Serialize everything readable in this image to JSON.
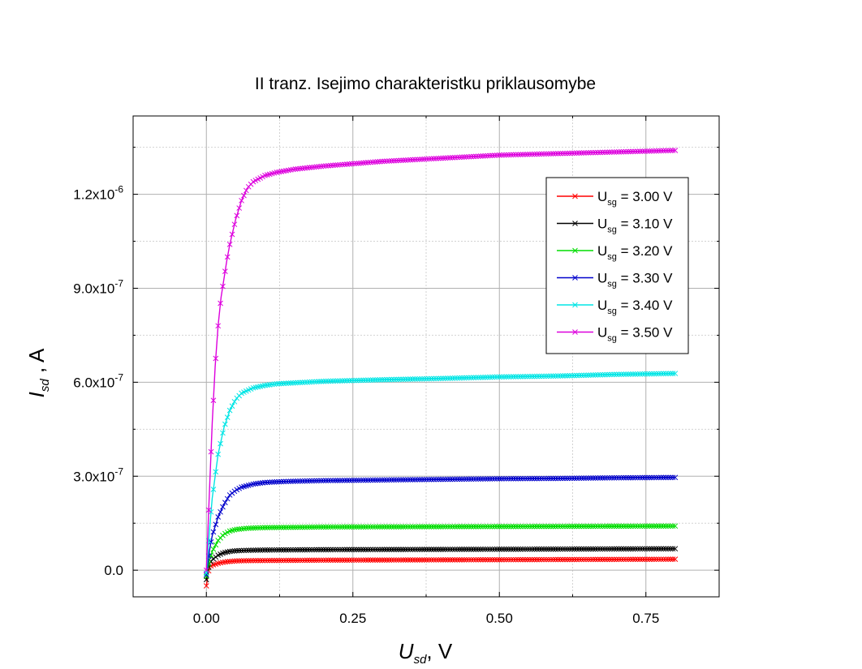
{
  "chart_data": {
    "type": "line",
    "title": "II tranz. Isejimo charakteristku priklausomybe",
    "xlabel": {
      "var": "U",
      "sub": "sd",
      "unit": "V"
    },
    "ylabel": {
      "var": "I",
      "sub": "sd",
      "unit": "A"
    },
    "xlim": [
      -0.125,
      0.875
    ],
    "ylim": [
      -8.5e-08,
      1.45e-06
    ],
    "x_ticks": [
      {
        "value": 0.0,
        "label": "0.00"
      },
      {
        "value": 0.25,
        "label": "0.25"
      },
      {
        "value": 0.5,
        "label": "0.50"
      },
      {
        "value": 0.75,
        "label": "0.75"
      }
    ],
    "y_ticks": [
      {
        "value": 0.0,
        "label": "0.0",
        "exp": ""
      },
      {
        "value": 3e-07,
        "label": "3.0x10",
        "exp": "-7"
      },
      {
        "value": 6e-07,
        "label": "6.0x10",
        "exp": "-7"
      },
      {
        "value": 9e-07,
        "label": "9.0x10",
        "exp": "-7"
      },
      {
        "value": 1.2e-06,
        "label": "1.2x10",
        "exp": "-6"
      }
    ],
    "grid": true,
    "legend_position": "top-right",
    "marker": "x",
    "series": [
      {
        "name": "U_sg = 3.00 V",
        "legend": {
          "var": "U",
          "sub": "sg",
          "text": " = 3.00 V"
        },
        "color": "#ff0000",
        "x": [
          0.0,
          0.005,
          0.01,
          0.02,
          0.03,
          0.04,
          0.05,
          0.07,
          0.1,
          0.15,
          0.2,
          0.3,
          0.4,
          0.5,
          0.6,
          0.7,
          0.8
        ],
        "y": [
          -5e-08,
          1e-08,
          1.6e-08,
          2.2e-08,
          2.6e-08,
          2.8e-08,
          2.95e-08,
          3.05e-08,
          3.1e-08,
          3.15e-08,
          3.2e-08,
          3.25e-08,
          3.3e-08,
          3.35e-08,
          3.4e-08,
          3.45e-08,
          3.5e-08
        ]
      },
      {
        "name": "U_sg = 3.10 V",
        "legend": {
          "var": "U",
          "sub": "sg",
          "text": " = 3.10 V"
        },
        "color": "#000000",
        "x": [
          0.0,
          0.005,
          0.01,
          0.02,
          0.03,
          0.04,
          0.05,
          0.07,
          0.1,
          0.15,
          0.2,
          0.3,
          0.4,
          0.5,
          0.6,
          0.7,
          0.8
        ],
        "y": [
          -3e-08,
          2e-08,
          3.3e-08,
          4.8e-08,
          5.6e-08,
          6e-08,
          6.2e-08,
          6.35e-08,
          6.45e-08,
          6.5e-08,
          6.55e-08,
          6.6e-08,
          6.65e-08,
          6.7e-08,
          6.75e-08,
          6.8e-08,
          6.85e-08
        ]
      },
      {
        "name": "U_sg = 3.20 V",
        "legend": {
          "var": "U",
          "sub": "sg",
          "text": " = 3.20 V"
        },
        "color": "#00dd00",
        "x": [
          0.0,
          0.005,
          0.01,
          0.02,
          0.03,
          0.04,
          0.05,
          0.07,
          0.1,
          0.15,
          0.2,
          0.3,
          0.4,
          0.5,
          0.6,
          0.7,
          0.8
        ],
        "y": [
          -2e-08,
          3e-08,
          6e-08,
          9.5e-08,
          1.15e-07,
          1.25e-07,
          1.3e-07,
          1.34e-07,
          1.36e-07,
          1.37e-07,
          1.38e-07,
          1.385e-07,
          1.39e-07,
          1.395e-07,
          1.4e-07,
          1.405e-07,
          1.41e-07
        ]
      },
      {
        "name": "U_sg = 3.30 V",
        "legend": {
          "var": "U",
          "sub": "sg",
          "text": " = 3.30 V"
        },
        "color": "#0000cc",
        "x": [
          0.0,
          0.005,
          0.01,
          0.02,
          0.03,
          0.04,
          0.05,
          0.06,
          0.08,
          0.1,
          0.12,
          0.15,
          0.2,
          0.3,
          0.4,
          0.5,
          0.6,
          0.7,
          0.8
        ],
        "y": [
          -1.5e-08,
          6e-08,
          1.1e-07,
          1.7e-07,
          2.1e-07,
          2.4e-07,
          2.55e-07,
          2.65e-07,
          2.75e-07,
          2.8e-07,
          2.82e-07,
          2.84e-07,
          2.86e-07,
          2.88e-07,
          2.9e-07,
          2.92e-07,
          2.93e-07,
          2.95e-07,
          2.96e-07
        ]
      },
      {
        "name": "U_sg = 3.40 V",
        "legend": {
          "var": "U",
          "sub": "sg",
          "text": " = 3.40 V"
        },
        "color": "#00e5e5",
        "x": [
          0.0,
          0.005,
          0.01,
          0.02,
          0.03,
          0.04,
          0.05,
          0.06,
          0.08,
          0.1,
          0.12,
          0.15,
          0.2,
          0.3,
          0.4,
          0.5,
          0.6,
          0.7,
          0.8
        ],
        "y": [
          -1e-08,
          1.2e-07,
          2.3e-07,
          3.7e-07,
          4.55e-07,
          5.1e-07,
          5.45e-07,
          5.65e-07,
          5.82e-07,
          5.9e-07,
          5.95e-07,
          5.98e-07,
          6.03e-07,
          6.08e-07,
          6.12e-07,
          6.17e-07,
          6.2e-07,
          6.25e-07,
          6.28e-07
        ]
      },
      {
        "name": "U_sg = 3.50 V",
        "legend": {
          "var": "U",
          "sub": "sg",
          "text": " = 3.50 V"
        },
        "color": "#dd00dd",
        "x": [
          0.0,
          0.005,
          0.01,
          0.015,
          0.02,
          0.025,
          0.03,
          0.035,
          0.04,
          0.045,
          0.05,
          0.055,
          0.06,
          0.065,
          0.07,
          0.08,
          0.09,
          0.1,
          0.12,
          0.15,
          0.2,
          0.3,
          0.4,
          0.5,
          0.6,
          0.7,
          0.8
        ],
        "y": [
          0.0,
          2.4e-07,
          4.7e-07,
          6.5e-07,
          7.8e-07,
          8.7e-07,
          9.3e-07,
          9.9e-07,
          1.04e-06,
          1.08e-06,
          1.12e-06,
          1.15e-06,
          1.18e-06,
          1.2e-06,
          1.22e-06,
          1.24e-06,
          1.25e-06,
          1.26e-06,
          1.27e-06,
          1.28e-06,
          1.29e-06,
          1.305e-06,
          1.315e-06,
          1.325e-06,
          1.33e-06,
          1.335e-06,
          1.34e-06
        ]
      }
    ]
  }
}
